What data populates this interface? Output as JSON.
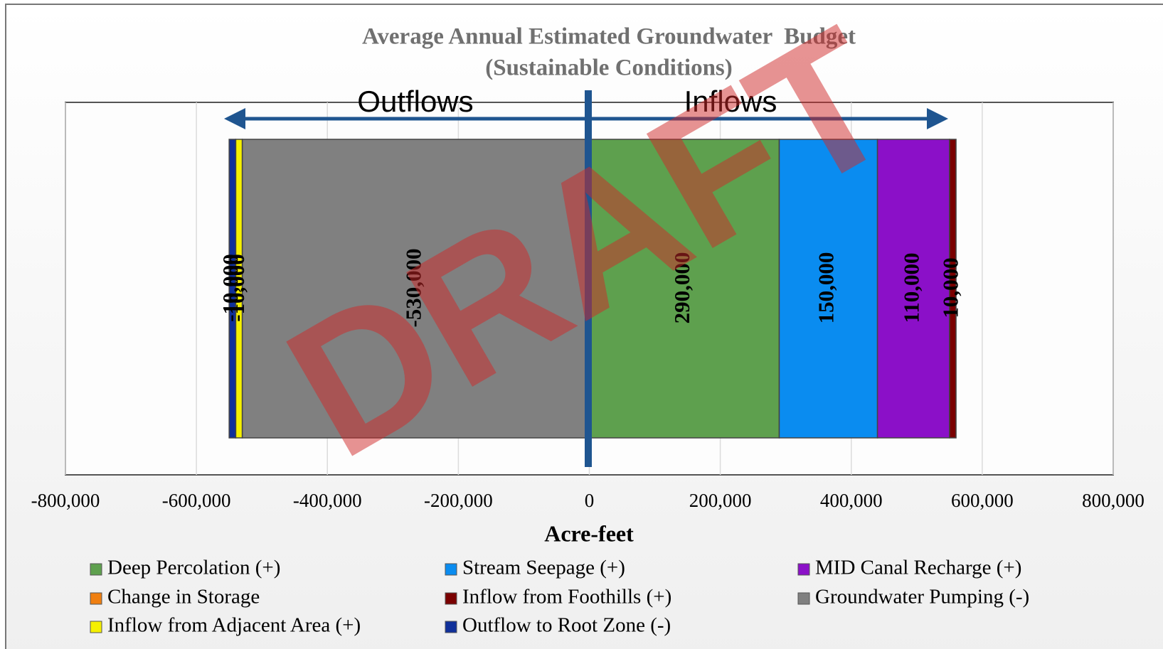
{
  "chart_data": {
    "type": "stacked-hbar",
    "title": "Average Annual Estimated Groundwater  Budget",
    "subtitle": "(Sustainable Conditions)",
    "xlabel": "Acre-feet",
    "annotations": [
      "Outflows",
      "Inflows"
    ],
    "watermark": "DRAFT",
    "xlim": [
      -800000,
      800000
    ],
    "xticks": [
      {
        "value": -800000,
        "label": "-800,000"
      },
      {
        "value": -600000,
        "label": "-600,000"
      },
      {
        "value": -400000,
        "label": "-400,000"
      },
      {
        "value": -200000,
        "label": "-200,000"
      },
      0,
      {
        "value": 200000,
        "label": "200,000"
      },
      {
        "value": 400000,
        "label": "400,000"
      },
      {
        "value": 600000,
        "label": "600,000"
      },
      {
        "value": 800000,
        "label": "800,000"
      }
    ],
    "grid": true,
    "series": [
      {
        "name": "Deep Percolation (+)",
        "color": "#5ea04e",
        "values": [
          290000
        ],
        "value_labels": [
          "290,000"
        ]
      },
      {
        "name": "Stream Seepage (+)",
        "color": "#0a8cf0",
        "values": [
          150000
        ],
        "value_labels": [
          "150,000"
        ]
      },
      {
        "name": "MID Canal Recharge (+)",
        "color": "#8b10c8",
        "values": [
          110000
        ],
        "value_labels": [
          "110,000"
        ]
      },
      {
        "name": "Change in Storage",
        "color": "#f07f10",
        "values": [
          0
        ],
        "value_labels": [
          null
        ]
      },
      {
        "name": "Inflow from Foothills (+)",
        "color": "#7a0000",
        "values": [
          10000
        ],
        "value_labels": [
          "10,000"
        ]
      },
      {
        "name": "Groundwater Pumping (-)",
        "color": "#808080",
        "values": [
          -530000
        ],
        "value_labels": [
          "-530,000"
        ]
      },
      {
        "name": "Inflow from Adjacent Area (+)",
        "color": "#f5f000",
        "values": [
          -10000
        ],
        "value_labels": [
          "-10,000"
        ]
      },
      {
        "name": "Outflow to Root Zone (-)",
        "color": "#10309a",
        "values": [
          -10000
        ],
        "value_labels": [
          "-10,000"
        ]
      }
    ]
  }
}
